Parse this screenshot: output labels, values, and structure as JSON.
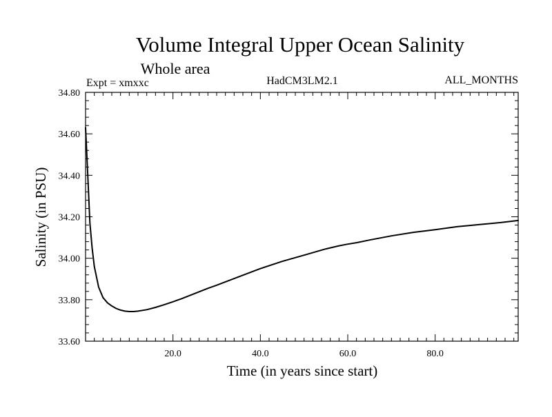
{
  "chart_data": {
    "type": "line",
    "title": "Volume Integral Upper Ocean Salinity",
    "subtitle": "Whole area",
    "annotations": {
      "left": "Expt = xmxxc",
      "center": "HadCM3LM2.1",
      "right": "ALL_MONTHS"
    },
    "xlabel": "Time (in years since start)",
    "ylabel": "Salinity (in PSU)",
    "xlim": [
      0,
      99
    ],
    "ylim": [
      33.6,
      34.8
    ],
    "xticks": [
      20,
      40,
      60,
      80
    ],
    "xtick_labels": [
      "20.0",
      "40.0",
      "60.0",
      "80.0"
    ],
    "yticks": [
      33.6,
      33.8,
      34.0,
      34.2,
      34.4,
      34.6,
      34.8
    ],
    "ytick_labels": [
      "33.60",
      "33.80",
      "34.00",
      "34.20",
      "34.40",
      "34.60",
      "34.80"
    ],
    "grid": false,
    "legend": "none",
    "line_color": "#000000",
    "series": [
      {
        "x": [
          0,
          0.5,
          1,
          1.5,
          2,
          3,
          4,
          5,
          6,
          7,
          8,
          9,
          10,
          11,
          12,
          14,
          16,
          18,
          20,
          22,
          25,
          28,
          30,
          35,
          40,
          45,
          50,
          55,
          58,
          60,
          62,
          65,
          70,
          75,
          80,
          85,
          90,
          95,
          99
        ],
        "y": [
          34.63,
          34.4,
          34.17,
          34.05,
          33.96,
          33.86,
          33.81,
          33.785,
          33.77,
          33.758,
          33.75,
          33.745,
          33.743,
          33.743,
          33.745,
          33.752,
          33.763,
          33.776,
          33.79,
          33.805,
          33.83,
          33.855,
          33.87,
          33.91,
          33.95,
          33.985,
          34.015,
          34.045,
          34.06,
          34.068,
          34.075,
          34.088,
          34.108,
          34.125,
          34.138,
          34.152,
          34.162,
          34.172,
          34.182
        ]
      }
    ]
  }
}
